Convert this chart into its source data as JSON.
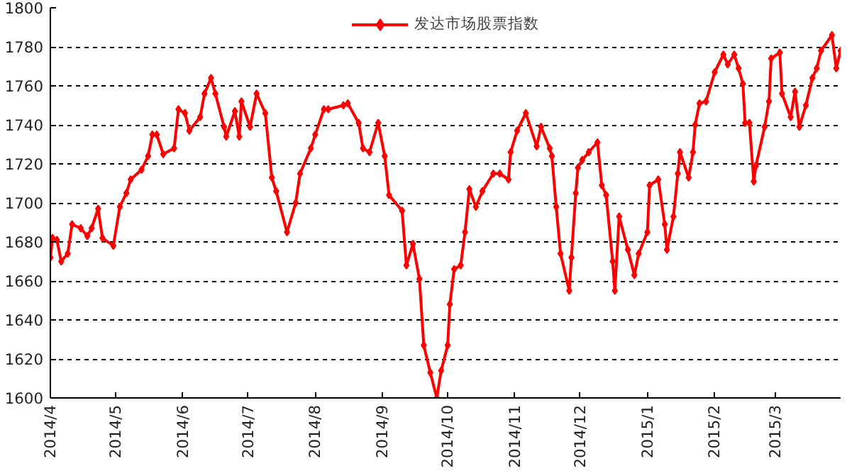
{
  "chart_data": {
    "type": "line",
    "legend": "top",
    "grid": "y",
    "marker": "diamond",
    "line_style": "solid",
    "xlim": [
      "2014-04-01",
      "2015-03-31"
    ],
    "xticks": [
      {
        "value": "2014-04-01",
        "label": "2014/4"
      },
      {
        "value": "2014-05-01",
        "label": "2014/5"
      },
      {
        "value": "2014-06-01",
        "label": "2014/6"
      },
      {
        "value": "2014-07-01",
        "label": "2014/7"
      },
      {
        "value": "2014-08-01",
        "label": "2014/8"
      },
      {
        "value": "2014-09-01",
        "label": "2014/9"
      },
      {
        "value": "2014-10-01",
        "label": "2014/10"
      },
      {
        "value": "2014-11-01",
        "label": "2014/11"
      },
      {
        "value": "2014-12-01",
        "label": "2014/12"
      },
      {
        "value": "2015-01-01",
        "label": "2015/1"
      },
      {
        "value": "2015-02-01",
        "label": "2015/2"
      },
      {
        "value": "2015-03-01",
        "label": "2015/3"
      }
    ],
    "ylim": [
      1600,
      1800
    ],
    "yticks": [
      1600,
      1620,
      1640,
      1660,
      1680,
      1700,
      1720,
      1740,
      1760,
      1780,
      1800
    ],
    "x": [
      "2014-04-01",
      "2014-04-02",
      "2014-04-04",
      "2014-04-06",
      "2014-04-09",
      "2014-04-11",
      "2014-04-15",
      "2014-04-18",
      "2014-04-20",
      "2014-04-23",
      "2014-04-25",
      "2014-04-30",
      "2014-05-03",
      "2014-05-06",
      "2014-05-08",
      "2014-05-13",
      "2014-05-16",
      "2014-05-18",
      "2014-05-20",
      "2014-05-23",
      "2014-05-28",
      "2014-05-30",
      "2014-06-02",
      "2014-06-04",
      "2014-06-09",
      "2014-06-11",
      "2014-06-14",
      "2014-06-16",
      "2014-06-20",
      "2014-06-21",
      "2014-06-25",
      "2014-06-27",
      "2014-06-28",
      "2014-07-02",
      "2014-07-05",
      "2014-07-09",
      "2014-07-12",
      "2014-07-14",
      "2014-07-19",
      "2014-07-23",
      "2014-07-25",
      "2014-07-30",
      "2014-08-01",
      "2014-08-05",
      "2014-08-07",
      "2014-08-14",
      "2014-08-16",
      "2014-08-21",
      "2014-08-23",
      "2014-08-26",
      "2014-08-30",
      "2014-09-02",
      "2014-09-04",
      "2014-09-10",
      "2014-09-12",
      "2014-09-15",
      "2014-09-18",
      "2014-09-20",
      "2014-09-23",
      "2014-09-26",
      "2014-09-28",
      "2014-10-01",
      "2014-10-02",
      "2014-10-04",
      "2014-10-07",
      "2014-10-09",
      "2014-10-11",
      "2014-10-14",
      "2014-10-17",
      "2014-10-22",
      "2014-10-25",
      "2014-10-29",
      "2014-10-30",
      "2014-11-02",
      "2014-11-06",
      "2014-11-11",
      "2014-11-13",
      "2014-11-17",
      "2014-11-18",
      "2014-11-20",
      "2014-11-22",
      "2014-11-26",
      "2014-11-27",
      "2014-11-29",
      "2014-11-30",
      "2014-12-02",
      "2014-12-05",
      "2014-12-09",
      "2014-12-11",
      "2014-12-13",
      "2014-12-16",
      "2014-12-17",
      "2014-12-19",
      "2014-12-23",
      "2014-12-26",
      "2014-12-28",
      "2015-01-01",
      "2015-01-02",
      "2015-01-06",
      "2015-01-09",
      "2015-01-10",
      "2015-01-13",
      "2015-01-15",
      "2015-01-16",
      "2015-01-20",
      "2015-01-22",
      "2015-01-23",
      "2015-01-25",
      "2015-01-28",
      "2015-02-01",
      "2015-02-05",
      "2015-02-07",
      "2015-02-10",
      "2015-02-12",
      "2015-02-14",
      "2015-02-15",
      "2015-02-17",
      "2015-02-19",
      "2015-02-20",
      "2015-02-24",
      "2015-02-26",
      "2015-02-27",
      "2015-03-03",
      "2015-03-04",
      "2015-03-08",
      "2015-03-10",
      "2015-03-12",
      "2015-03-15",
      "2015-03-18",
      "2015-03-20",
      "2015-03-22",
      "2015-03-27",
      "2015-03-29",
      "2015-03-31"
    ],
    "series": [
      {
        "name": "发达市场股票指数",
        "color": "#ff0000",
        "values": [
          1672,
          1682,
          1681,
          1670,
          1674,
          1689,
          1687,
          1683,
          1687,
          1697,
          1682,
          1678,
          1698,
          1705,
          1712,
          1717,
          1724,
          1735,
          1735,
          1725,
          1728,
          1748,
          1746,
          1737,
          1744,
          1756,
          1764,
          1756,
          1739,
          1734,
          1747,
          1734,
          1752,
          1739,
          1756,
          1746,
          1713,
          1706,
          1685,
          1700,
          1715,
          1728,
          1735,
          1748,
          1748,
          1750,
          1751,
          1741,
          1728,
          1726,
          1741,
          1724,
          1704,
          1696,
          1668,
          1679,
          1661,
          1627,
          1613,
          1600,
          1614,
          1627,
          1648,
          1666,
          1668,
          1685,
          1707,
          1698,
          1706,
          1715,
          1715,
          1712,
          1726,
          1737,
          1746,
          1729,
          1739,
          1728,
          1724,
          1698,
          1674,
          1655,
          1672,
          1705,
          1718,
          1722,
          1726,
          1731,
          1709,
          1704,
          1670,
          1655,
          1693,
          1676,
          1663,
          1674,
          1685,
          1709,
          1712,
          1689,
          1676,
          1693,
          1715,
          1726,
          1713,
          1726,
          1740,
          1751,
          1752,
          1767,
          1776,
          1771,
          1776,
          1769,
          1761,
          1741,
          1741,
          1711,
          1719,
          1739,
          1752,
          1774,
          1777,
          1756,
          1744,
          1757,
          1739,
          1750,
          1764,
          1769,
          1778,
          1786,
          1769,
          1778
        ]
      }
    ]
  }
}
